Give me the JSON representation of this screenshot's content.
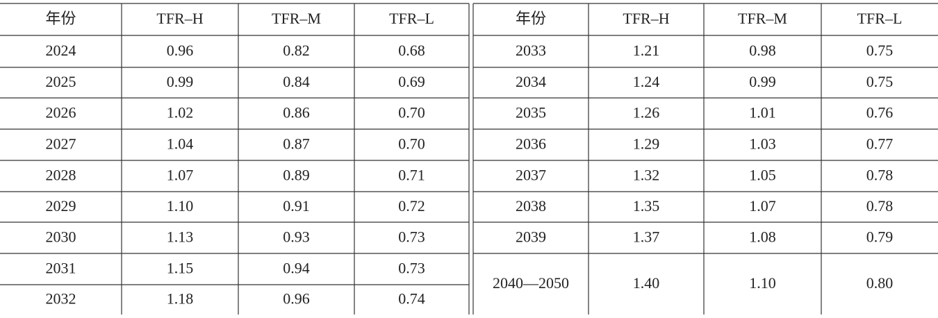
{
  "table": {
    "left": {
      "header": [
        "年份",
        "TFR–H",
        "TFR–M",
        "TFR–L"
      ],
      "rows": [
        [
          "2024",
          "0.96",
          "0.82",
          "0.68"
        ],
        [
          "2025",
          "0.99",
          "0.84",
          "0.69"
        ],
        [
          "2026",
          "1.02",
          "0.86",
          "0.70"
        ],
        [
          "2027",
          "1.04",
          "0.87",
          "0.70"
        ],
        [
          "2028",
          "1.07",
          "0.89",
          "0.71"
        ],
        [
          "2029",
          "1.10",
          "0.91",
          "0.72"
        ],
        [
          "2030",
          "1.13",
          "0.93",
          "0.73"
        ],
        [
          "2031",
          "1.15",
          "0.94",
          "0.73"
        ],
        [
          "2032",
          "1.18",
          "0.96",
          "0.74"
        ]
      ]
    },
    "right": {
      "header": [
        "年份",
        "TFR–H",
        "TFR–M",
        "TFR–L"
      ],
      "rows": [
        [
          "2033",
          "1.21",
          "0.98",
          "0.75"
        ],
        [
          "2034",
          "1.24",
          "0.99",
          "0.75"
        ],
        [
          "2035",
          "1.26",
          "1.01",
          "0.76"
        ],
        [
          "2036",
          "1.29",
          "1.03",
          "0.77"
        ],
        [
          "2037",
          "1.32",
          "1.05",
          "0.78"
        ],
        [
          "2038",
          "1.35",
          "1.07",
          "0.78"
        ],
        [
          "2039",
          "1.37",
          "1.08",
          "0.79"
        ],
        [
          "2040—2050",
          "1.40",
          "1.10",
          "0.80"
        ]
      ]
    }
  }
}
